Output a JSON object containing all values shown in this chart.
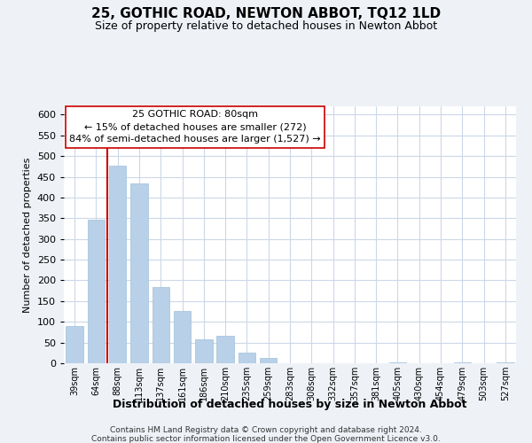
{
  "title": "25, GOTHIC ROAD, NEWTON ABBOT, TQ12 1LD",
  "subtitle": "Size of property relative to detached houses in Newton Abbot",
  "xlabel": "Distribution of detached houses by size in Newton Abbot",
  "ylabel": "Number of detached properties",
  "bar_color": "#b8d0e8",
  "bar_edge_color": "#a0c0dc",
  "marker_line_color": "#cc0000",
  "categories": [
    "39sqm",
    "64sqm",
    "88sqm",
    "113sqm",
    "137sqm",
    "161sqm",
    "186sqm",
    "210sqm",
    "235sqm",
    "259sqm",
    "283sqm",
    "308sqm",
    "332sqm",
    "357sqm",
    "381sqm",
    "405sqm",
    "430sqm",
    "454sqm",
    "479sqm",
    "503sqm",
    "527sqm"
  ],
  "values": [
    90,
    347,
    477,
    433,
    183,
    126,
    57,
    67,
    25,
    12,
    0,
    0,
    0,
    0,
    0,
    3,
    0,
    0,
    2,
    0,
    2
  ],
  "ylim": [
    0,
    620
  ],
  "yticks": [
    0,
    50,
    100,
    150,
    200,
    250,
    300,
    350,
    400,
    450,
    500,
    550,
    600
  ],
  "annotation_title": "25 GOTHIC ROAD: 80sqm",
  "annotation_line1": "← 15% of detached houses are smaller (272)",
  "annotation_line2": "84% of semi-detached houses are larger (1,527) →",
  "annotation_box_color": "#ffffff",
  "annotation_box_edge_color": "#cc0000",
  "footer_line1": "Contains HM Land Registry data © Crown copyright and database right 2024.",
  "footer_line2": "Contains public sector information licensed under the Open Government Licence v3.0.",
  "background_color": "#eef2f7",
  "plot_background_color": "#ffffff",
  "grid_color": "#ccd8e8",
  "title_fontsize": 11,
  "subtitle_fontsize": 9,
  "xlabel_fontsize": 9,
  "ylabel_fontsize": 8,
  "tick_fontsize": 8,
  "xtick_fontsize": 7,
  "annotation_fontsize": 8,
  "footer_fontsize": 6.5
}
